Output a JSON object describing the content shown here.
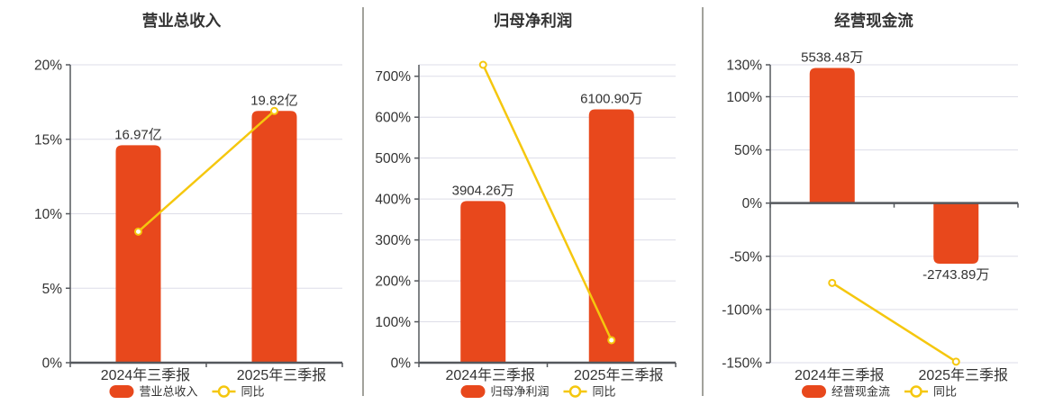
{
  "page": {
    "background": "#ffffff"
  },
  "colors": {
    "bar": "#E8481C",
    "line": "#F5C70E",
    "grid": "#DDDDE8",
    "axis": "#55585D",
    "text": "#333333",
    "value_label": "#333333",
    "divider": "#A2A29C",
    "marker_fill": "#FFFFFF"
  },
  "chart_data": [
    {
      "type": "bar+line",
      "title": "营业总收入",
      "categories": [
        "2024年三季报",
        "2025年三季报"
      ],
      "series": [
        {
          "name": "营业总收入",
          "type": "bar",
          "value_labels": [
            "16.97亿",
            "19.82亿"
          ],
          "display_values_pct": [
            14.6,
            16.9
          ]
        },
        {
          "name": "同比",
          "type": "line",
          "values_pct": [
            8.8,
            16.9
          ]
        }
      ],
      "y_axis": {
        "tick_values": [
          0,
          5,
          10,
          15,
          20
        ],
        "tick_labels": [
          "0%",
          "5%",
          "10%",
          "15%",
          "20%"
        ],
        "range": [
          0,
          20
        ],
        "unit": "%"
      },
      "baseline": 0,
      "grid": true,
      "legend_position": "bottom"
    },
    {
      "type": "bar+line",
      "title": "归母净利润",
      "categories": [
        "2024年三季报",
        "2025年三季报"
      ],
      "series": [
        {
          "name": "归母净利润",
          "type": "bar",
          "value_labels": [
            "3904.26万",
            "6100.90万"
          ],
          "display_values_pct": [
            395,
            619
          ]
        },
        {
          "name": "同比",
          "type": "line",
          "values_pct": [
            728,
            55
          ]
        }
      ],
      "y_axis": {
        "tick_values": [
          0,
          100,
          200,
          300,
          400,
          500,
          600,
          700
        ],
        "tick_labels": [
          "0%",
          "100%",
          "200%",
          "300%",
          "400%",
          "500%",
          "600%",
          "700%"
        ],
        "range": [
          0,
          728
        ],
        "unit": "%"
      },
      "baseline": 0,
      "grid": true,
      "legend_position": "bottom"
    },
    {
      "type": "bar+line",
      "title": "经营现金流",
      "categories": [
        "2024年三季报",
        "2025年三季报"
      ],
      "series": [
        {
          "name": "经营现金流",
          "type": "bar",
          "value_labels": [
            "5538.48万",
            "-2743.89万"
          ],
          "display_values_pct": [
            127,
            -57
          ]
        },
        {
          "name": "同比",
          "type": "line",
          "values_pct": [
            -75,
            -149
          ]
        }
      ],
      "y_axis": {
        "tick_values": [
          -150,
          -100,
          -50,
          0,
          50,
          100,
          130
        ],
        "tick_labels": [
          "-150%",
          "-100%",
          "-50%",
          "0%",
          "50%",
          "100%",
          "130%"
        ],
        "range": [
          -150,
          130
        ],
        "unit": "%"
      },
      "baseline": 0,
      "grid": true,
      "legend_position": "bottom"
    }
  ]
}
